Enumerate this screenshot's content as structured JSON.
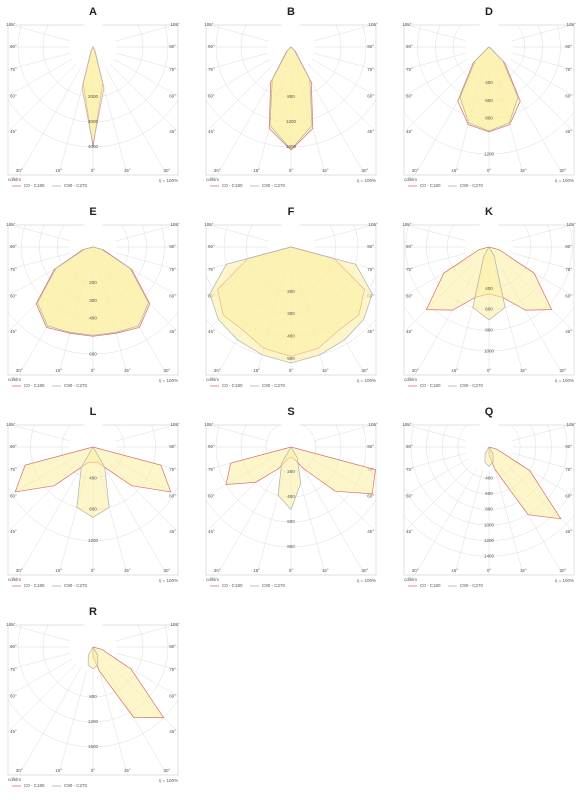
{
  "angle_ticks": [
    {
      "value": -105,
      "label": "105°"
    },
    {
      "value": -90,
      "label": "90°"
    },
    {
      "value": -75,
      "label": "75°"
    },
    {
      "value": -60,
      "label": "60°"
    },
    {
      "value": -45,
      "label": "45°"
    },
    {
      "value": -30,
      "label": "30°"
    },
    {
      "value": -15,
      "label": "15°"
    },
    {
      "value": 0,
      "label": "0°"
    },
    {
      "value": 15,
      "label": "15°"
    },
    {
      "value": 30,
      "label": "30°"
    },
    {
      "value": 45,
      "label": "45°"
    },
    {
      "value": 60,
      "label": "60°"
    },
    {
      "value": 75,
      "label": "75°"
    },
    {
      "value": 90,
      "label": "90°"
    },
    {
      "value": 105,
      "label": "105°"
    }
  ],
  "chart_data": [
    {
      "type": "polar",
      "title": "A",
      "unit": "cd/klm",
      "efficiency": "η = 100%",
      "angles": [
        -90,
        -75,
        -60,
        -45,
        -30,
        -15,
        0,
        15,
        30,
        45,
        60,
        75,
        90
      ],
      "rlim": [
        0,
        5000
      ],
      "rticks": [
        2000,
        3000,
        4000
      ],
      "series": [
        {
          "name": "C0 - C180",
          "color": "#d9706a",
          "values": [
            0,
            0,
            0,
            0,
            100,
            1500,
            4000,
            1500,
            100,
            0,
            0,
            0,
            0
          ]
        },
        {
          "name": "C90 - C270",
          "color": "#b0b0b0",
          "values": [
            0,
            0,
            0,
            0,
            150,
            1700,
            3900,
            1700,
            150,
            0,
            0,
            0,
            0
          ]
        }
      ]
    },
    {
      "type": "polar",
      "title": "B",
      "unit": "cd/klm",
      "efficiency": "η = 100%",
      "angles": [
        -90,
        -75,
        -60,
        -45,
        -30,
        -15,
        0,
        15,
        30,
        45,
        60,
        75,
        90
      ],
      "rlim": [
        0,
        2000
      ],
      "rticks": [
        800,
        1200,
        1600
      ],
      "series": [
        {
          "name": "C0 - C180",
          "color": "#d9706a",
          "values": [
            0,
            0,
            0,
            100,
            650,
            1350,
            1650,
            1350,
            650,
            100,
            0,
            0,
            0
          ]
        },
        {
          "name": "C90 - C270",
          "color": "#b0b0b0",
          "values": [
            0,
            0,
            0,
            80,
            600,
            1300,
            1640,
            1300,
            600,
            80,
            0,
            0,
            0
          ]
        }
      ]
    },
    {
      "type": "polar",
      "title": "D",
      "unit": "cd/klm",
      "efficiency": "η = 100%",
      "angles": [
        -90,
        -75,
        -60,
        -45,
        -30,
        -15,
        0,
        15,
        30,
        45,
        60,
        75,
        90
      ],
      "rlim": [
        0,
        1400
      ],
      "rticks": [
        400,
        600,
        800,
        1200
      ],
      "series": [
        {
          "name": "C0 - C180",
          "color": "#d9706a",
          "values": [
            0,
            0,
            10,
            250,
            700,
            900,
            950,
            900,
            700,
            250,
            10,
            0,
            0
          ]
        },
        {
          "name": "C90 - C270",
          "color": "#b0b0b0",
          "values": [
            0,
            0,
            10,
            220,
            650,
            880,
            940,
            880,
            650,
            220,
            10,
            0,
            0
          ]
        }
      ]
    },
    {
      "type": "polar",
      "title": "E",
      "unit": "cd/klm",
      "efficiency": "η = 100%",
      "angles": [
        -90,
        -75,
        -60,
        -45,
        -30,
        -15,
        0,
        15,
        30,
        45,
        60,
        75,
        90
      ],
      "rlim": [
        0,
        700
      ],
      "rticks": [
        200,
        300,
        400,
        600
      ],
      "series": [
        {
          "name": "C0 - C180",
          "color": "#d9706a",
          "values": [
            0,
            60,
            250,
            450,
            520,
            500,
            500,
            500,
            520,
            450,
            250,
            60,
            0
          ]
        },
        {
          "name": "C90 - C270",
          "color": "#b0b0b0",
          "values": [
            0,
            50,
            240,
            440,
            510,
            495,
            495,
            495,
            510,
            440,
            240,
            50,
            0
          ]
        }
      ]
    },
    {
      "type": "polar",
      "title": "F",
      "unit": "cd/klm",
      "efficiency": "η = 100%",
      "angles": [
        -90,
        -75,
        -60,
        -45,
        -30,
        -15,
        0,
        15,
        30,
        45,
        60,
        75,
        90
      ],
      "rlim": [
        0,
        560
      ],
      "rticks": [
        200,
        300,
        400,
        500
      ],
      "series": [
        {
          "name": "C0 - C180",
          "color": "#d9706a",
          "values": [
            0,
            200,
            380,
            430,
            430,
            470,
            490,
            470,
            430,
            430,
            380,
            200,
            0
          ]
        },
        {
          "name": "C90 - C270",
          "color": "#b0b0b0",
          "values": [
            0,
            300,
            420,
            460,
            480,
            500,
            520,
            500,
            480,
            460,
            420,
            300,
            0
          ]
        }
      ]
    },
    {
      "type": "polar",
      "title": "K",
      "unit": "cd/klm",
      "efficiency": "η = 100%",
      "angles": [
        -90,
        -75,
        -60,
        -45,
        -30,
        -15,
        0,
        15,
        30,
        45,
        60,
        75,
        90
      ],
      "rlim": [
        0,
        1200
      ],
      "rticks": [
        400,
        600,
        800,
        1000
      ],
      "series": [
        {
          "name": "C0 - C180",
          "color": "#d9706a",
          "values": [
            0,
            100,
            500,
            850,
            700,
            500,
            450,
            500,
            700,
            850,
            500,
            100,
            0
          ]
        },
        {
          "name": "C90 - C270",
          "color": "#b0b0b0",
          "values": [
            0,
            0,
            0,
            0,
            100,
            600,
            700,
            600,
            100,
            0,
            0,
            0,
            0
          ]
        }
      ]
    },
    {
      "type": "polar",
      "title": "L",
      "unit": "cd/klm",
      "efficiency": "η = 100%",
      "angles": [
        -90,
        -75,
        -60,
        -45,
        -30,
        -15,
        0,
        15,
        30,
        45,
        60,
        75,
        90
      ],
      "rlim": [
        0,
        1600
      ],
      "rticks": [
        400,
        800,
        1200
      ],
      "series": [
        {
          "name": "C0 - C180",
          "color": "#d9706a",
          "values": [
            0,
            900,
            1150,
            700,
            300,
            200,
            200,
            200,
            300,
            700,
            1150,
            900,
            0
          ]
        },
        {
          "name": "C90 - C270",
          "color": "#b0b0b0",
          "values": [
            0,
            0,
            0,
            0,
            300,
            800,
            900,
            800,
            300,
            0,
            0,
            0,
            0
          ]
        }
      ]
    },
    {
      "type": "polar",
      "title": "S",
      "unit": "cd/klm",
      "efficiency": "η = 100%",
      "angles": [
        -90,
        -75,
        -60,
        -45,
        -30,
        -15,
        0,
        15,
        30,
        45,
        60,
        75,
        90
      ],
      "rlim": [
        0,
        1000
      ],
      "rticks": [
        200,
        400,
        600,
        800
      ],
      "series": [
        {
          "name": "C0 - C180",
          "color": "#d9706a",
          "values": [
            0,
            500,
            600,
            400,
            200,
            100,
            80,
            100,
            200,
            500,
            750,
            700,
            0
          ]
        },
        {
          "name": "C90 - C270",
          "color": "#b0b0b0",
          "values": [
            0,
            0,
            0,
            0,
            150,
            400,
            500,
            300,
            100,
            0,
            0,
            0,
            0
          ]
        }
      ]
    },
    {
      "type": "polar",
      "title": "Q",
      "unit": "cd/klm",
      "efficiency": "η = 100%",
      "angles": [
        -90,
        -75,
        -60,
        -45,
        -30,
        -15,
        0,
        15,
        30,
        45,
        60,
        75,
        90
      ],
      "rlim": [
        0,
        1600
      ],
      "rticks": [
        400,
        600,
        800,
        1000,
        1200,
        1400
      ],
      "series": [
        {
          "name": "C0 - C180",
          "color": "#d9706a",
          "values": [
            0,
            0,
            0,
            0,
            0,
            0,
            100,
            300,
            1000,
            1300,
            600,
            100,
            0
          ]
        },
        {
          "name": "C90 - C270",
          "color": "#b0b0b0",
          "values": [
            0,
            0,
            0,
            0,
            100,
            200,
            250,
            200,
            100,
            0,
            0,
            0,
            0
          ]
        }
      ]
    },
    {
      "type": "polar",
      "title": "R",
      "unit": "cd/klm",
      "efficiency": "η = 100%",
      "angles": [
        -90,
        -75,
        -60,
        -45,
        -30,
        -15,
        0,
        15,
        30,
        45,
        60,
        75,
        90
      ],
      "rlim": [
        0,
        2000
      ],
      "rticks": [
        800,
        1200,
        1600
      ],
      "series": [
        {
          "name": "C0 - C180",
          "color": "#d9706a",
          "values": [
            0,
            0,
            0,
            0,
            0,
            0,
            150,
            400,
            1300,
            1600,
            700,
            150,
            0
          ]
        },
        {
          "name": "C90 - C270",
          "color": "#b0b0b0",
          "values": [
            0,
            0,
            0,
            0,
            150,
            300,
            350,
            300,
            150,
            0,
            0,
            0,
            0
          ]
        }
      ]
    }
  ]
}
